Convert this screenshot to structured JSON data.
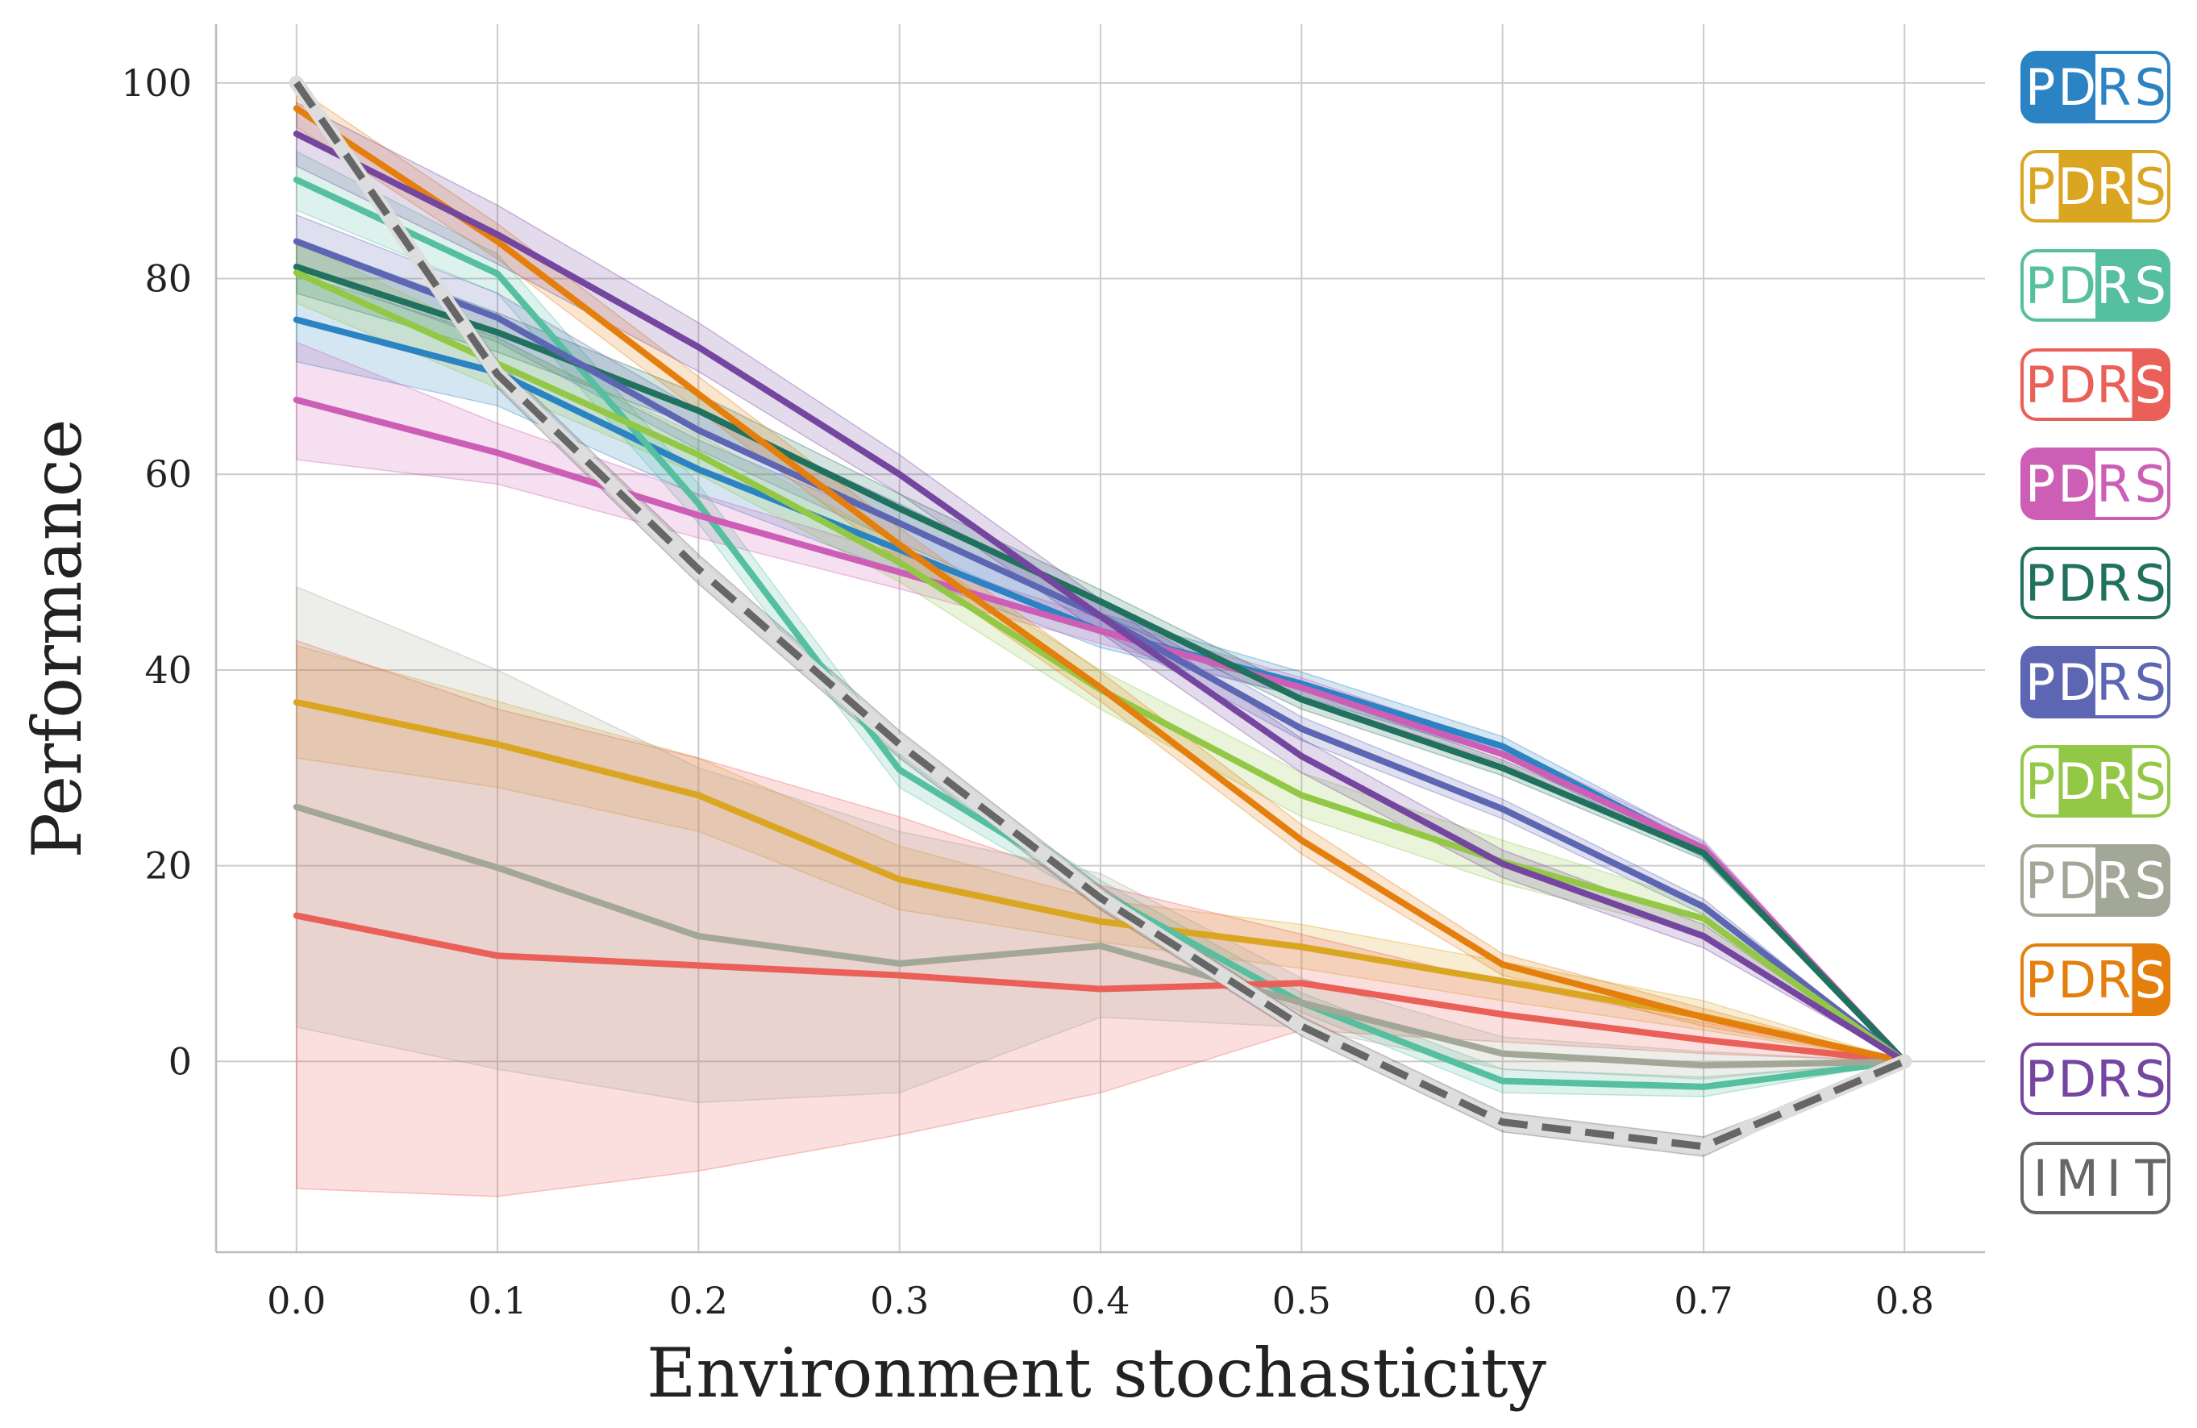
{
  "chart_data": {
    "type": "line",
    "title": "",
    "xlabel": "Environment stochasticity",
    "ylabel": "Performance",
    "xlim": [
      -0.04,
      0.84
    ],
    "ylim": [
      -19.5,
      106
    ],
    "grid": true,
    "legend_position": "right",
    "x": [
      0.0,
      0.1,
      0.2,
      0.3,
      0.4,
      0.5,
      0.6,
      0.7,
      0.8
    ],
    "x_ticks": [
      "0.0",
      "0.1",
      "0.2",
      "0.3",
      "0.4",
      "0.5",
      "0.6",
      "0.7",
      "0.8"
    ],
    "y_ticks": [
      0,
      20,
      40,
      60,
      80,
      100
    ],
    "series": [
      {
        "name": "PDRS",
        "color": "#2b83c3",
        "highlight": [
          0,
          1
        ],
        "values": [
          75.8,
          70.4,
          60.5,
          52.3,
          44.0,
          38.6,
          32.2,
          21.6,
          0.0
        ],
        "lower": [
          71.5,
          67.0,
          57.8,
          50.0,
          42.3,
          37.3,
          31.2,
          20.8,
          0.0
        ],
        "upper": [
          80.5,
          74.0,
          63.5,
          54.8,
          45.8,
          39.8,
          33.2,
          22.4,
          0.0
        ]
      },
      {
        "name": "PDRS",
        "color": "#daa520",
        "highlight": [
          1,
          2
        ],
        "values": [
          36.7,
          32.4,
          27.2,
          18.6,
          14.3,
          11.7,
          8.2,
          4.6,
          0.0
        ],
        "lower": [
          31.0,
          28.0,
          23.5,
          15.5,
          12.2,
          9.5,
          6.2,
          3.2,
          0.0
        ],
        "upper": [
          42.5,
          36.8,
          31.0,
          22.0,
          16.5,
          14.0,
          10.2,
          6.2,
          0.0
        ]
      },
      {
        "name": "PDRS",
        "color": "#55bf9f",
        "highlight": [
          2,
          3
        ],
        "values": [
          90.1,
          80.5,
          57.0,
          29.8,
          17.2,
          6.0,
          -2.0,
          -2.6,
          0.0
        ],
        "lower": [
          87.0,
          78.5,
          55.0,
          28.0,
          16.0,
          5.0,
          -3.2,
          -3.6,
          0.0
        ],
        "upper": [
          93.0,
          82.5,
          59.0,
          31.5,
          18.5,
          7.0,
          -0.8,
          -1.6,
          0.0
        ]
      },
      {
        "name": "PDRS",
        "color": "#ea5f58",
        "highlight": [
          3,
          4
        ],
        "values": [
          14.9,
          10.8,
          9.8,
          8.8,
          7.4,
          8.0,
          4.8,
          2.2,
          0.0
        ],
        "lower": [
          -13.0,
          -13.8,
          -11.2,
          -7.5,
          -3.2,
          3.2,
          2.0,
          0.8,
          0.0
        ],
        "upper": [
          43.0,
          36.0,
          31.0,
          25.0,
          18.0,
          13.0,
          8.0,
          4.0,
          0.0
        ]
      },
      {
        "name": "PDRS",
        "color": "#cd5eb6",
        "highlight": [
          0,
          1
        ],
        "values": [
          67.6,
          62.2,
          55.8,
          50.0,
          44.0,
          38.2,
          31.4,
          21.8,
          0.0
        ],
        "lower": [
          61.5,
          59.0,
          53.5,
          48.3,
          42.7,
          37.2,
          30.5,
          21.0,
          0.0
        ],
        "upper": [
          73.5,
          65.2,
          58.0,
          51.8,
          45.3,
          39.2,
          32.3,
          22.6,
          0.0
        ]
      },
      {
        "name": "PDRS",
        "color": "#21715f",
        "highlight": [],
        "values": [
          81.2,
          74.5,
          66.5,
          56.5,
          47.0,
          37.0,
          30.0,
          21.3,
          0.0
        ],
        "lower": [
          78.5,
          72.5,
          64.8,
          55.0,
          45.8,
          36.0,
          29.2,
          20.6,
          0.0
        ],
        "upper": [
          84.0,
          76.5,
          68.2,
          58.0,
          48.2,
          38.0,
          30.8,
          22.0,
          0.0
        ]
      },
      {
        "name": "PDRS",
        "color": "#5c66b2",
        "highlight": [
          0,
          1
        ],
        "values": [
          83.8,
          76.0,
          64.5,
          55.0,
          45.5,
          34.0,
          25.8,
          15.8,
          0.0
        ],
        "lower": [
          81.0,
          73.5,
          62.5,
          53.0,
          44.0,
          32.8,
          24.8,
          15.0,
          0.0
        ],
        "upper": [
          86.5,
          78.5,
          66.5,
          57.0,
          47.0,
          35.2,
          26.8,
          16.6,
          0.0
        ]
      },
      {
        "name": "PDRS",
        "color": "#93c847",
        "highlight": [
          1,
          2
        ],
        "values": [
          80.6,
          71.3,
          62.0,
          51.0,
          38.0,
          27.2,
          20.4,
          14.6,
          0.0
        ],
        "lower": [
          77.5,
          68.8,
          60.0,
          49.0,
          36.0,
          25.0,
          18.2,
          13.0,
          0.0
        ],
        "upper": [
          83.8,
          73.8,
          64.0,
          53.0,
          40.0,
          29.5,
          22.6,
          16.2,
          0.0
        ]
      },
      {
        "name": "PDRS",
        "color": "#a3a798",
        "highlight": [
          2,
          3
        ],
        "values": [
          26.0,
          19.8,
          12.8,
          10.0,
          11.8,
          6.0,
          0.8,
          -0.4,
          0.0
        ],
        "lower": [
          3.5,
          -0.8,
          -4.2,
          -3.2,
          4.5,
          3.5,
          -0.8,
          -1.8,
          0.0
        ],
        "upper": [
          48.5,
          40.0,
          30.0,
          23.5,
          19.2,
          8.5,
          2.5,
          1.0,
          0.0
        ]
      },
      {
        "name": "PDRS",
        "color": "#e47f0e",
        "highlight": [
          3,
          4
        ],
        "values": [
          97.4,
          83.8,
          68.2,
          52.8,
          38.2,
          22.6,
          9.9,
          4.5,
          0.0
        ],
        "lower": [
          95.5,
          82.0,
          66.5,
          51.2,
          36.8,
          21.2,
          8.8,
          3.6,
          0.0
        ],
        "upper": [
          99.5,
          85.6,
          70.0,
          54.5,
          39.8,
          24.2,
          11.0,
          5.4,
          0.0
        ]
      },
      {
        "name": "PDRS",
        "color": "#7546a0",
        "highlight": [],
        "values": [
          94.8,
          84.5,
          73.0,
          60.0,
          45.5,
          31.2,
          20.2,
          12.8,
          0.0
        ],
        "lower": [
          91.5,
          81.5,
          70.5,
          58.0,
          43.8,
          29.5,
          18.8,
          11.6,
          0.0
        ],
        "upper": [
          98.0,
          87.5,
          75.5,
          62.0,
          47.2,
          33.0,
          21.6,
          14.0,
          0.0
        ]
      },
      {
        "name": "IMIT",
        "color": "#666666",
        "dashed": true,
        "highlight": [],
        "values": [
          100.0,
          70.2,
          50.3,
          32.4,
          16.7,
          3.6,
          -6.2,
          -8.7,
          0.0
        ],
        "lower": [
          99.4,
          68.8,
          48.8,
          31.0,
          15.5,
          2.6,
          -7.2,
          -9.7,
          0.0
        ],
        "upper": [
          100.6,
          71.6,
          51.8,
          33.8,
          17.9,
          4.6,
          -5.2,
          -7.7,
          0.0
        ]
      }
    ]
  }
}
